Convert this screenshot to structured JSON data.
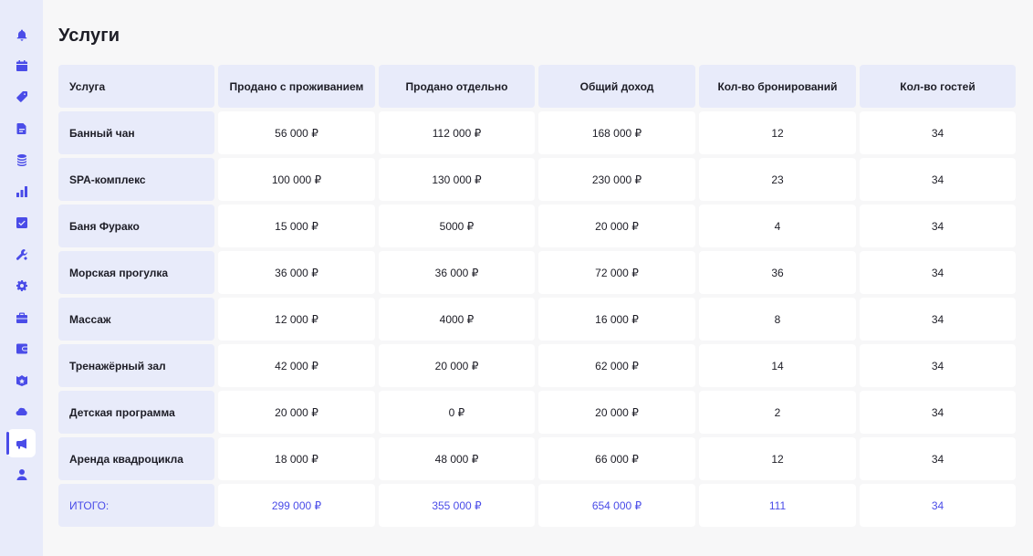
{
  "sidebar": {
    "items": [
      {
        "icon": "bell-icon",
        "active": false
      },
      {
        "icon": "calendar-icon",
        "active": false
      },
      {
        "icon": "tag-icon",
        "active": false
      },
      {
        "icon": "document-icon",
        "active": false
      },
      {
        "icon": "coins-icon",
        "active": false
      },
      {
        "icon": "bar-chart-icon",
        "active": false
      },
      {
        "icon": "checkbox-icon",
        "active": false
      },
      {
        "icon": "tools-icon",
        "active": false
      },
      {
        "icon": "gear-icon",
        "active": false
      },
      {
        "icon": "briefcase-icon",
        "active": false
      },
      {
        "icon": "wallet-icon",
        "active": false
      },
      {
        "icon": "badge-star-icon",
        "active": false
      },
      {
        "icon": "cloud-icon",
        "active": false
      },
      {
        "icon": "megaphone-icon",
        "active": true
      },
      {
        "icon": "user-icon",
        "active": false
      }
    ]
  },
  "page": {
    "title": "Услуги"
  },
  "table": {
    "headers": [
      "Услуга",
      "Продано с проживанием",
      "Продано отдельно",
      "Общий доход",
      "Кол-во бронирований",
      "Кол-во гостей"
    ],
    "rows": [
      [
        "Банный чан",
        "56 000 ₽",
        "112 000 ₽",
        "168 000 ₽",
        "12",
        "34"
      ],
      [
        "SPA-комплекс",
        "100 000 ₽",
        "130 000 ₽",
        "230 000 ₽",
        "23",
        "34"
      ],
      [
        "Баня Фурако",
        "15 000 ₽",
        "5000 ₽",
        "20 000 ₽",
        "4",
        "34"
      ],
      [
        "Морская прогулка",
        "36 000 ₽",
        "36 000 ₽",
        "72 000 ₽",
        "36",
        "34"
      ],
      [
        "Массаж",
        "12 000 ₽",
        "4000 ₽",
        "16 000 ₽",
        "8",
        "34"
      ],
      [
        "Тренажёрный зал",
        "42 000 ₽",
        "20 000 ₽",
        "62 000 ₽",
        "14",
        "34"
      ],
      [
        "Детская программа",
        "20 000 ₽",
        "0 ₽",
        "20 000 ₽",
        "2",
        "34"
      ],
      [
        "Аренда квадроцикла",
        "18 000 ₽",
        "48 000 ₽",
        "66 000 ₽",
        "12",
        "34"
      ]
    ],
    "total": [
      "ИТОГО:",
      "299 000 ₽",
      "355 000 ₽",
      "654 000 ₽",
      "111",
      "34"
    ]
  },
  "colors": {
    "accent": "#4a4ce8",
    "header_bg": "#e8ebfa",
    "page_bg": "#f7f7f8"
  }
}
